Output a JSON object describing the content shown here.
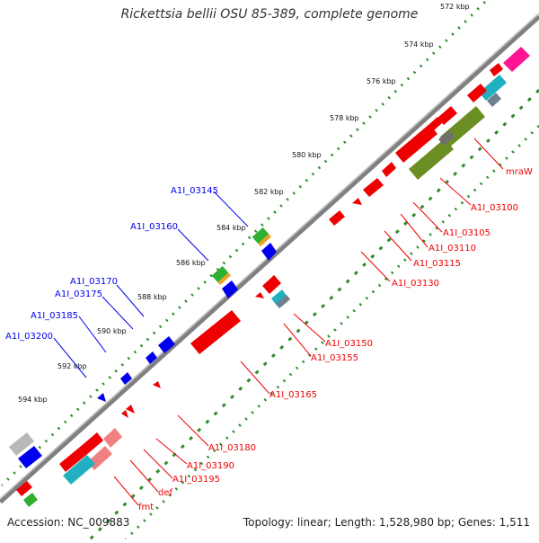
{
  "header": {
    "title": "Rickettsia bellii OSU 85-389, complete genome"
  },
  "footer": {
    "accession": "Accession: NC_009883",
    "summary": "Topology: linear; Length: 1,528,980 bp; Genes: 1,511"
  },
  "scale": {
    "ticks": [
      "572 kbp",
      "574 kbp",
      "576 kbp",
      "578 kbp",
      "580 kbp",
      "582 kbp",
      "584 kbp",
      "586 kbp",
      "588 kbp",
      "590 kbp",
      "592 kbp",
      "594 kbp"
    ]
  },
  "colors": {
    "forward_strand": "#0000ee",
    "reverse_strand": "#ee0000",
    "backbone": "#808080",
    "tick_track": "#2e8b2e"
  },
  "forward_labels": [
    "A1I_03145",
    "A1I_03160",
    "A1I_03170",
    "A1I_03175",
    "A1I_03185",
    "A1I_03200"
  ],
  "reverse_labels": [
    "mraW",
    "A1I_03100",
    "A1I_03105",
    "A1I_03110",
    "A1I_03115",
    "A1I_03130",
    "A1I_03150",
    "A1I_03155",
    "A1I_03165",
    "A1I_03180",
    "A1I_03190",
    "A1I_03195",
    "def",
    "fmt"
  ]
}
